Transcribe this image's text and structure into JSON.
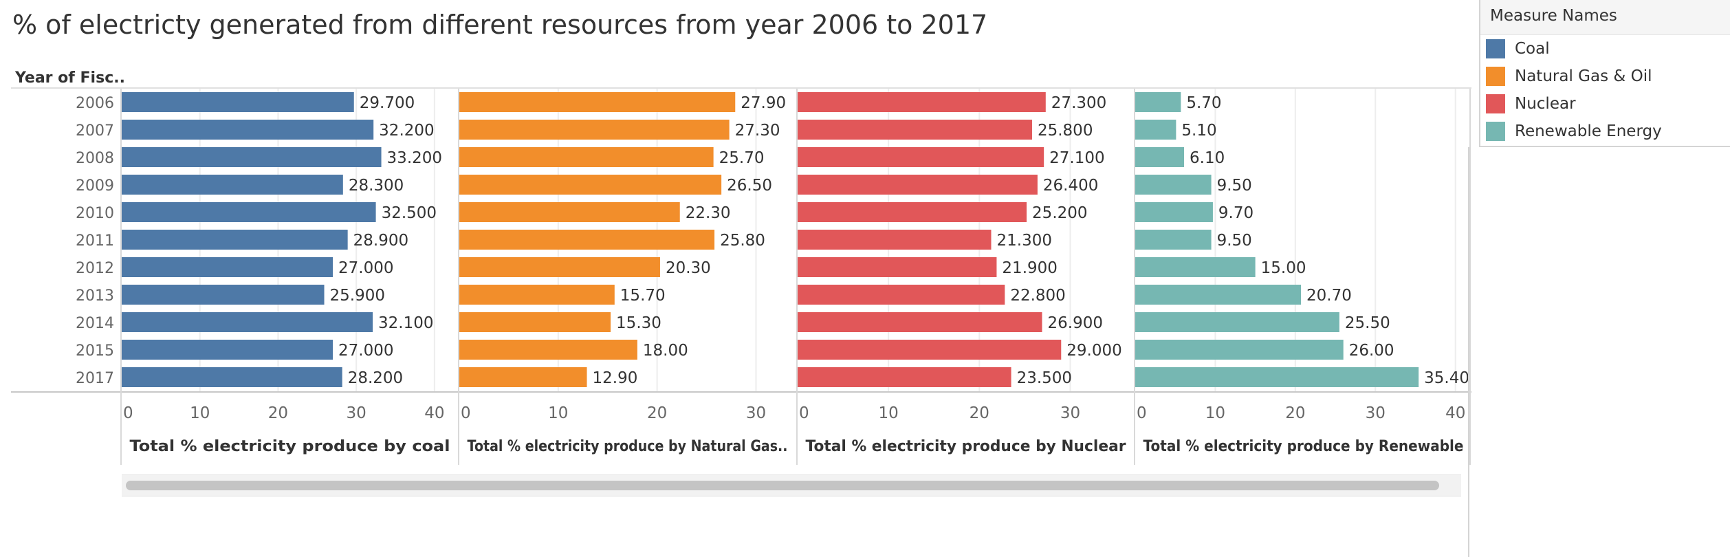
{
  "title": "% of electricty generated from different resources from year 2006 to 2017",
  "chart_data": {
    "type": "bar",
    "orientation": "horizontal",
    "row_header": "Year of Fisc..",
    "categories": [
      "2006",
      "2007",
      "2008",
      "2009",
      "2010",
      "2011",
      "2012",
      "2013",
      "2014",
      "2015",
      "2017"
    ],
    "panels": [
      {
        "name": "Coal",
        "xlabel": "Total % electricity produce by coal",
        "color": "#4e79a7",
        "xlim": [
          0,
          43
        ],
        "ticks": [
          0,
          10,
          20,
          30,
          40
        ],
        "decimals": 3,
        "values": [
          29.7,
          32.2,
          33.2,
          28.3,
          32.5,
          28.9,
          27.0,
          25.9,
          32.1,
          27.0,
          28.2
        ]
      },
      {
        "name": "Natural Gas & Oil",
        "xlabel": "Total % electricity produce by Natural Gas..",
        "color": "#f28e2b",
        "xlim": [
          0,
          34
        ],
        "ticks": [
          0,
          10,
          20,
          30
        ],
        "decimals": 2,
        "values": [
          27.9,
          27.3,
          25.7,
          26.5,
          22.3,
          25.8,
          20.3,
          15.7,
          15.3,
          18.0,
          12.9
        ]
      },
      {
        "name": "Nuclear",
        "xlabel": "Total % electricity produce by Nuclear",
        "color": "#e15759",
        "xlim": [
          0,
          37
        ],
        "ticks": [
          0,
          10,
          20,
          30
        ],
        "decimals": 3,
        "values": [
          27.3,
          25.8,
          27.1,
          26.4,
          25.2,
          21.3,
          21.9,
          22.8,
          26.9,
          29.0,
          23.5
        ]
      },
      {
        "name": "Renewable Energy",
        "xlabel": "Total % electricity produce by Renewable",
        "color": "#76b7b2",
        "xlim": [
          0,
          42
        ],
        "ticks": [
          0,
          10,
          20,
          30,
          40
        ],
        "decimals": 2,
        "values": [
          5.7,
          5.1,
          6.1,
          9.5,
          9.7,
          9.5,
          15.0,
          20.7,
          25.5,
          26.0,
          35.4
        ]
      }
    ],
    "grid": true,
    "legend_position": "top-right"
  },
  "legend": {
    "title": "Measure Names",
    "items": [
      {
        "label": "Coal",
        "color": "#4e79a7"
      },
      {
        "label": "Natural Gas & Oil",
        "color": "#f28e2b"
      },
      {
        "label": "Nuclear",
        "color": "#e15759"
      },
      {
        "label": "Renewable Energy",
        "color": "#76b7b2"
      }
    ]
  }
}
